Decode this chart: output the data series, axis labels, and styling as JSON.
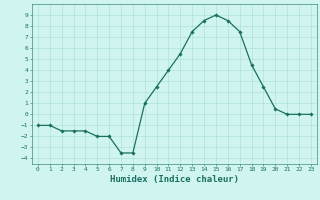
{
  "x": [
    0,
    1,
    2,
    3,
    4,
    5,
    6,
    7,
    8,
    9,
    10,
    11,
    12,
    13,
    14,
    15,
    16,
    17,
    18,
    19,
    20,
    21,
    22,
    23
  ],
  "y": [
    -1,
    -1,
    -1.5,
    -1.5,
    -1.5,
    -2,
    -2,
    -3.5,
    -3.5,
    1,
    2.5,
    4,
    5.5,
    7.5,
    8.5,
    9,
    8.5,
    7.5,
    4.5,
    2.5,
    0.5,
    0,
    0,
    0
  ],
  "line_color": "#1a7060",
  "marker": "D",
  "marker_size": 1.8,
  "bg_color": "#d0f5f0",
  "grid_color": "#a8ddd8",
  "xlabel": "Humidex (Indice chaleur)",
  "xlabel_fontsize": 6.5,
  "xlabel_color": "#1a7060",
  "ylim": [
    -4.5,
    10
  ],
  "xlim": [
    -0.5,
    23.5
  ],
  "yticks": [
    -4,
    -3,
    -2,
    -1,
    0,
    1,
    2,
    3,
    4,
    5,
    6,
    7,
    8,
    9
  ],
  "xticks": [
    0,
    1,
    2,
    3,
    4,
    5,
    6,
    7,
    8,
    9,
    10,
    11,
    12,
    13,
    14,
    15,
    16,
    17,
    18,
    19,
    20,
    21,
    22,
    23
  ],
  "tick_color": "#1a7060",
  "tick_fontsize": 4.5,
  "line_width": 0.9
}
